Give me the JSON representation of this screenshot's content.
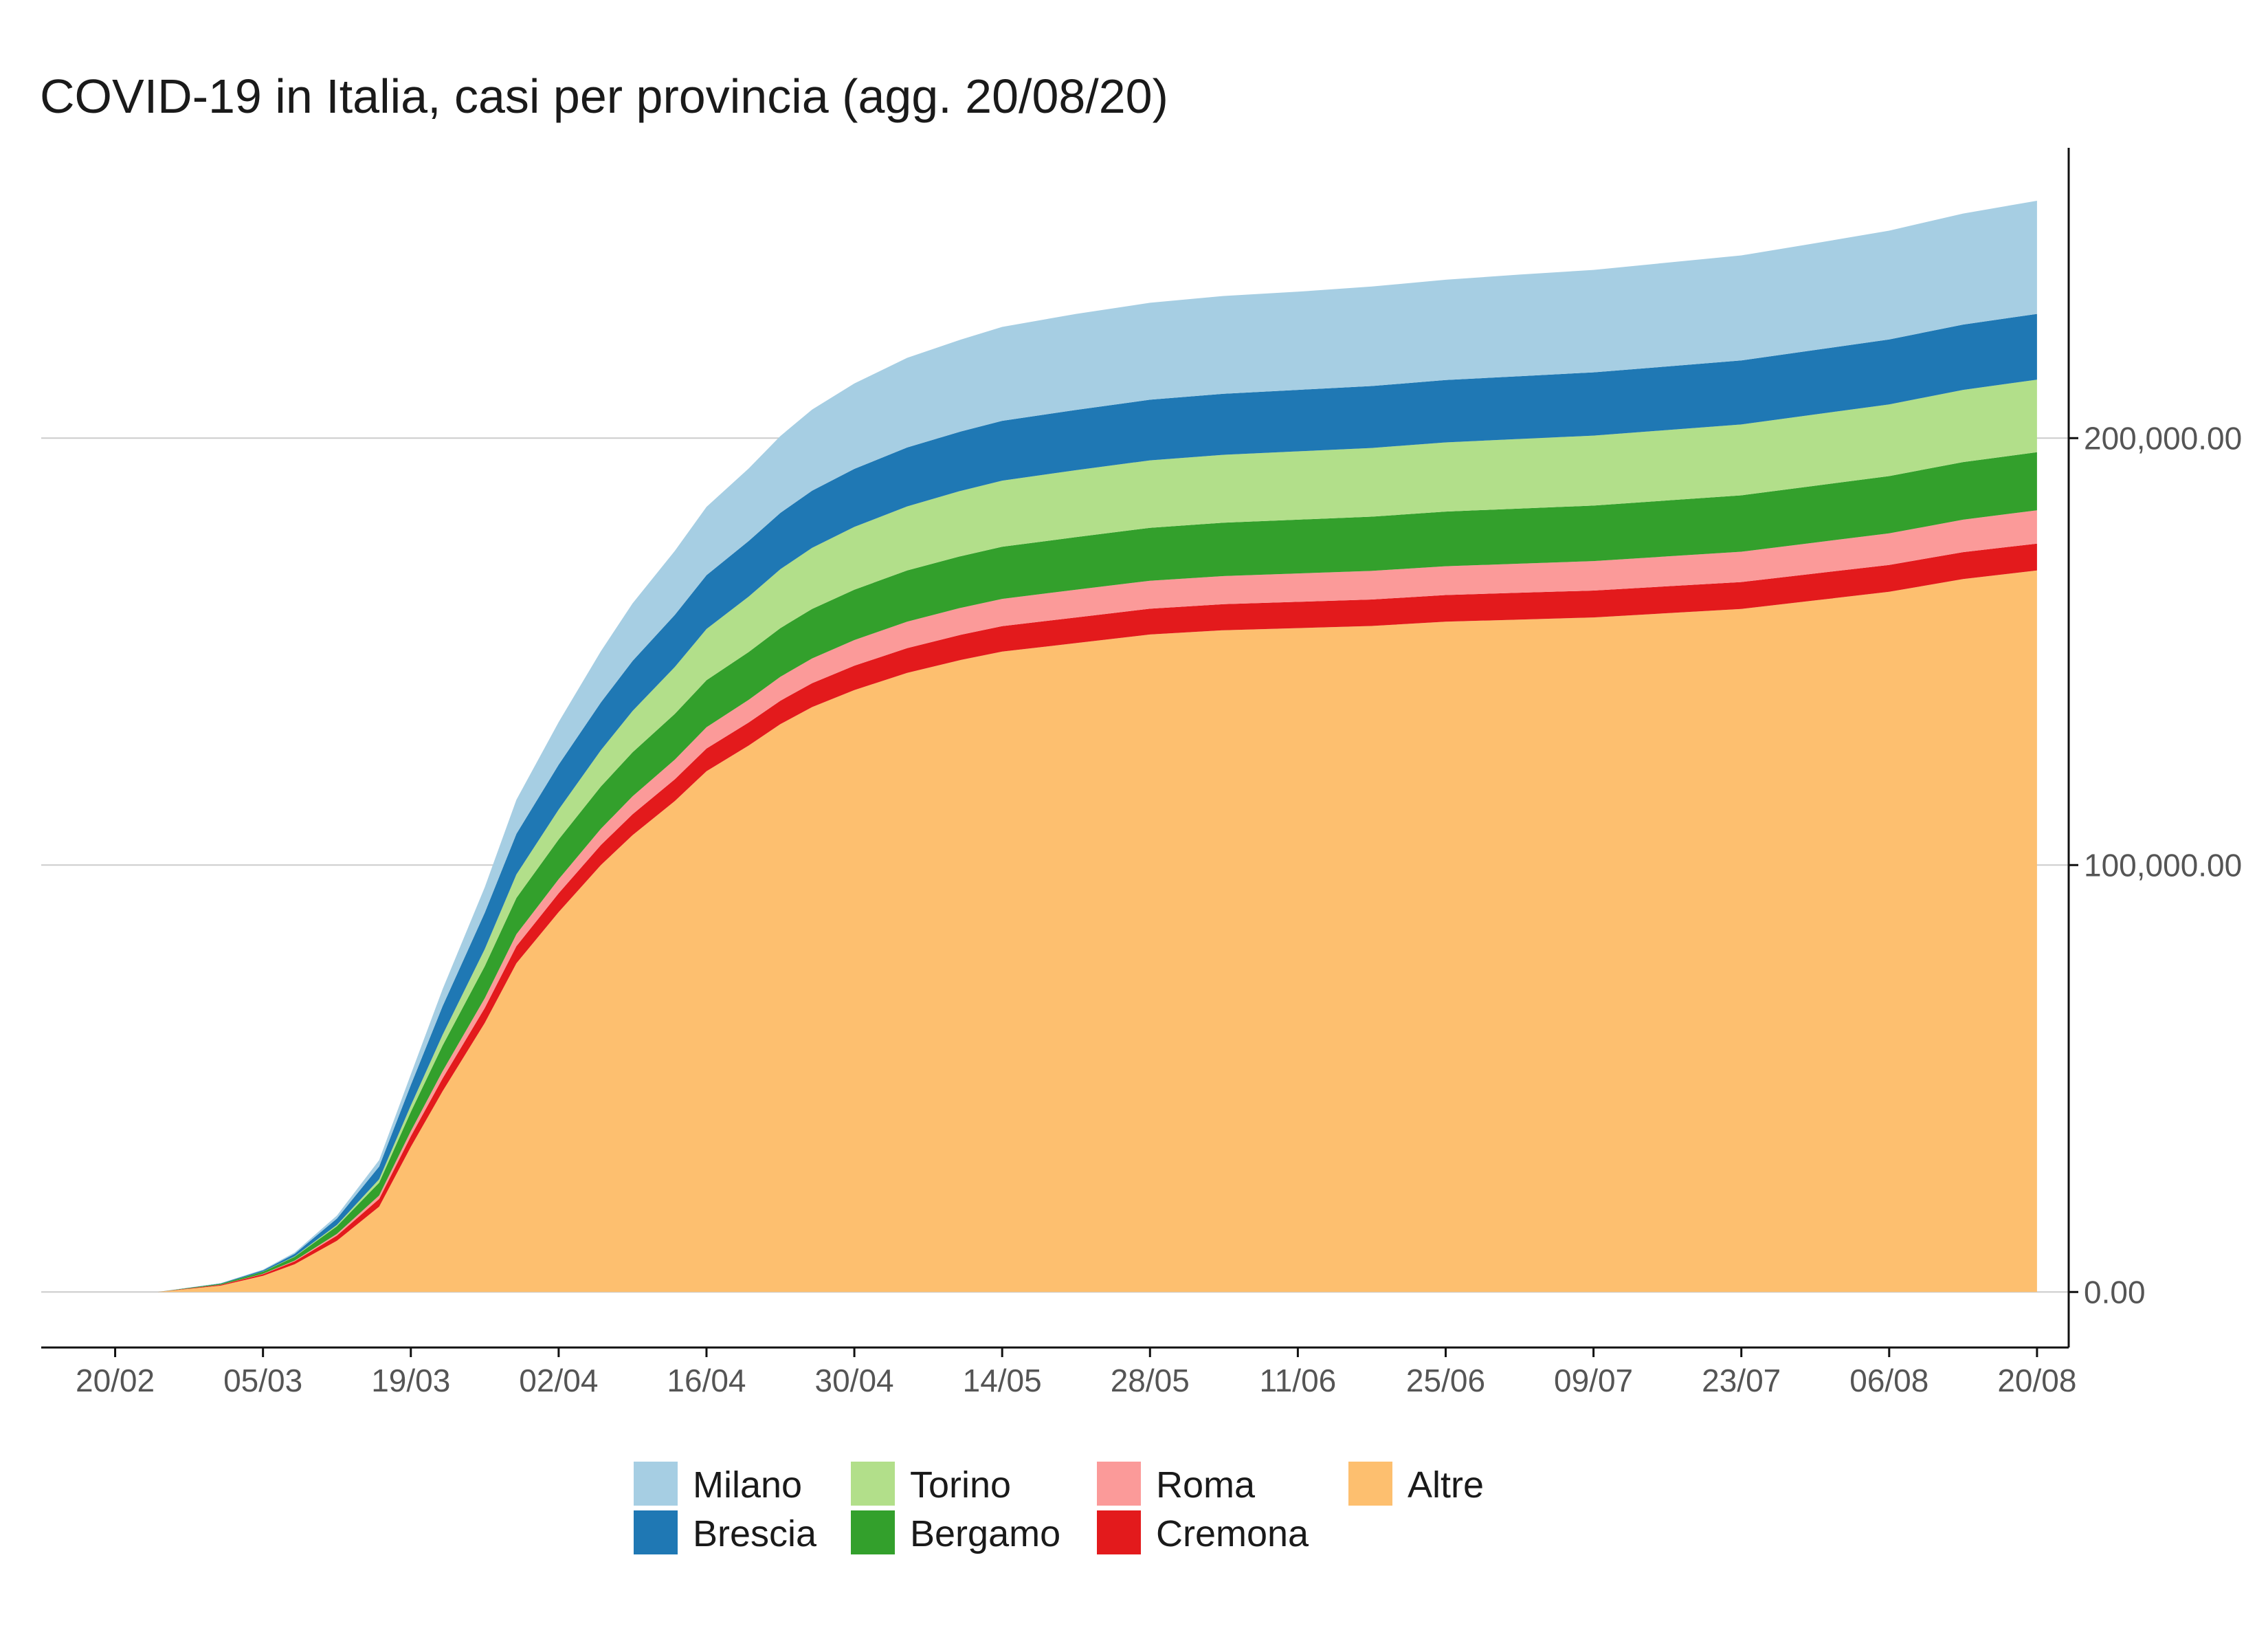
{
  "chart_data": {
    "type": "area",
    "stacked": true,
    "title": "COVID-19 in Italia, casi per provincia (agg. 20/08/20)",
    "xlabel": "",
    "ylabel": "",
    "y_axis_position": "right",
    "grid": "horizontal",
    "legend_placement": "bottom",
    "ylim": [
      -13000,
      268000
    ],
    "xlim": [
      "2020-02-13",
      "2020-08-23"
    ],
    "x_ticks": [
      "2020-02-20",
      "2020-03-05",
      "2020-03-19",
      "2020-04-02",
      "2020-04-16",
      "2020-04-30",
      "2020-05-14",
      "2020-05-28",
      "2020-06-11",
      "2020-06-25",
      "2020-07-09",
      "2020-07-23",
      "2020-08-06",
      "2020-08-20"
    ],
    "x_tick_labels": [
      "20/02",
      "05/03",
      "19/03",
      "02/04",
      "16/04",
      "30/04",
      "14/05",
      "28/05",
      "11/06",
      "25/06",
      "09/07",
      "23/07",
      "06/08",
      "20/08"
    ],
    "y_ticks": [
      0,
      100000,
      200000
    ],
    "y_tick_labels": [
      "0.00",
      "100,000.00",
      "200,000.00"
    ],
    "x": [
      "2020-02-24",
      "2020-03-01",
      "2020-03-05",
      "2020-03-08",
      "2020-03-12",
      "2020-03-16",
      "2020-03-19",
      "2020-03-22",
      "2020-03-26",
      "2020-03-29",
      "2020-04-02",
      "2020-04-06",
      "2020-04-09",
      "2020-04-13",
      "2020-04-16",
      "2020-04-20",
      "2020-04-23",
      "2020-04-26",
      "2020-04-30",
      "2020-05-05",
      "2020-05-10",
      "2020-05-14",
      "2020-05-21",
      "2020-05-28",
      "2020-06-04",
      "2020-06-11",
      "2020-06-18",
      "2020-06-25",
      "2020-07-02",
      "2020-07-09",
      "2020-07-16",
      "2020-07-23",
      "2020-07-30",
      "2020-08-06",
      "2020-08-13",
      "2020-08-20"
    ],
    "series": [
      {
        "name": "Altre",
        "color": "#fdbf6f",
        "values": [
          0,
          1500,
          3800,
          6500,
          12000,
          20000,
          34000,
          47000,
          63000,
          77000,
          89000,
          100000,
          107000,
          115000,
          122000,
          128000,
          133000,
          137000,
          141000,
          145000,
          148000,
          150000,
          152000,
          154000,
          155000,
          155500,
          156000,
          157000,
          157500,
          158000,
          159000,
          160000,
          162000,
          164000,
          167000,
          169000
        ]
      },
      {
        "name": "Cremona",
        "color": "#e31a1c",
        "values": [
          0,
          200,
          400,
          700,
          1200,
          1800,
          2500,
          3000,
          3500,
          4000,
          4400,
          4700,
          4900,
          5100,
          5300,
          5400,
          5500,
          5600,
          5700,
          5800,
          5900,
          5950,
          6000,
          6050,
          6100,
          6150,
          6200,
          6250,
          6300,
          6300,
          6300,
          6300,
          6300,
          6300,
          6300,
          6300
        ]
      },
      {
        "name": "Roma",
        "color": "#fb9a99",
        "values": [
          0,
          20,
          60,
          150,
          400,
          800,
          1200,
          1700,
          2300,
          2800,
          3300,
          3800,
          4200,
          4600,
          5000,
          5300,
          5600,
          5800,
          6000,
          6200,
          6300,
          6400,
          6500,
          6550,
          6600,
          6650,
          6700,
          6750,
          6800,
          6900,
          7000,
          7100,
          7250,
          7400,
          7600,
          7800
        ]
      },
      {
        "name": "Bergamo",
        "color": "#33a02c",
        "values": [
          0,
          200,
          500,
          900,
          1800,
          3000,
          4500,
          6000,
          7500,
          8500,
          9300,
          9900,
          10300,
          10700,
          11000,
          11200,
          11400,
          11600,
          11800,
          12000,
          12100,
          12200,
          12300,
          12400,
          12500,
          12600,
          12700,
          12800,
          12900,
          13000,
          13100,
          13200,
          13300,
          13400,
          13500,
          13600
        ]
      },
      {
        "name": "Torino",
        "color": "#b2df8a",
        "values": [
          0,
          10,
          30,
          100,
          300,
          800,
          1500,
          2500,
          4000,
          5500,
          7000,
          8500,
          9700,
          11000,
          12000,
          13000,
          13800,
          14300,
          14700,
          15000,
          15300,
          15500,
          15700,
          15800,
          15900,
          16000,
          16100,
          16200,
          16300,
          16400,
          16500,
          16600,
          16700,
          16800,
          16900,
          17000
        ]
      },
      {
        "name": "Brescia",
        "color": "#1f78b4",
        "values": [
          0,
          100,
          300,
          600,
          1500,
          3000,
          4800,
          6700,
          8500,
          9500,
          10500,
          11200,
          11700,
          12200,
          12600,
          13000,
          13200,
          13400,
          13600,
          13800,
          13900,
          14000,
          14100,
          14200,
          14300,
          14400,
          14500,
          14600,
          14700,
          14800,
          14900,
          15000,
          15100,
          15200,
          15300,
          15400
        ]
      },
      {
        "name": "Milano",
        "color": "#a6cee3",
        "values": [
          0,
          50,
          150,
          300,
          700,
          1500,
          2500,
          4000,
          6000,
          8000,
          10000,
          12000,
          13500,
          15000,
          16000,
          17000,
          18000,
          19000,
          20000,
          21000,
          21500,
          22000,
          22500,
          22700,
          22900,
          23000,
          23300,
          23500,
          23800,
          24000,
          24300,
          24600,
          25000,
          25500,
          26000,
          26500
        ]
      }
    ],
    "legend": {
      "rows": [
        [
          "Milano",
          "Torino",
          "Roma",
          "Altre"
        ],
        [
          "Brescia",
          "Bergamo",
          "Cremona"
        ]
      ]
    }
  }
}
